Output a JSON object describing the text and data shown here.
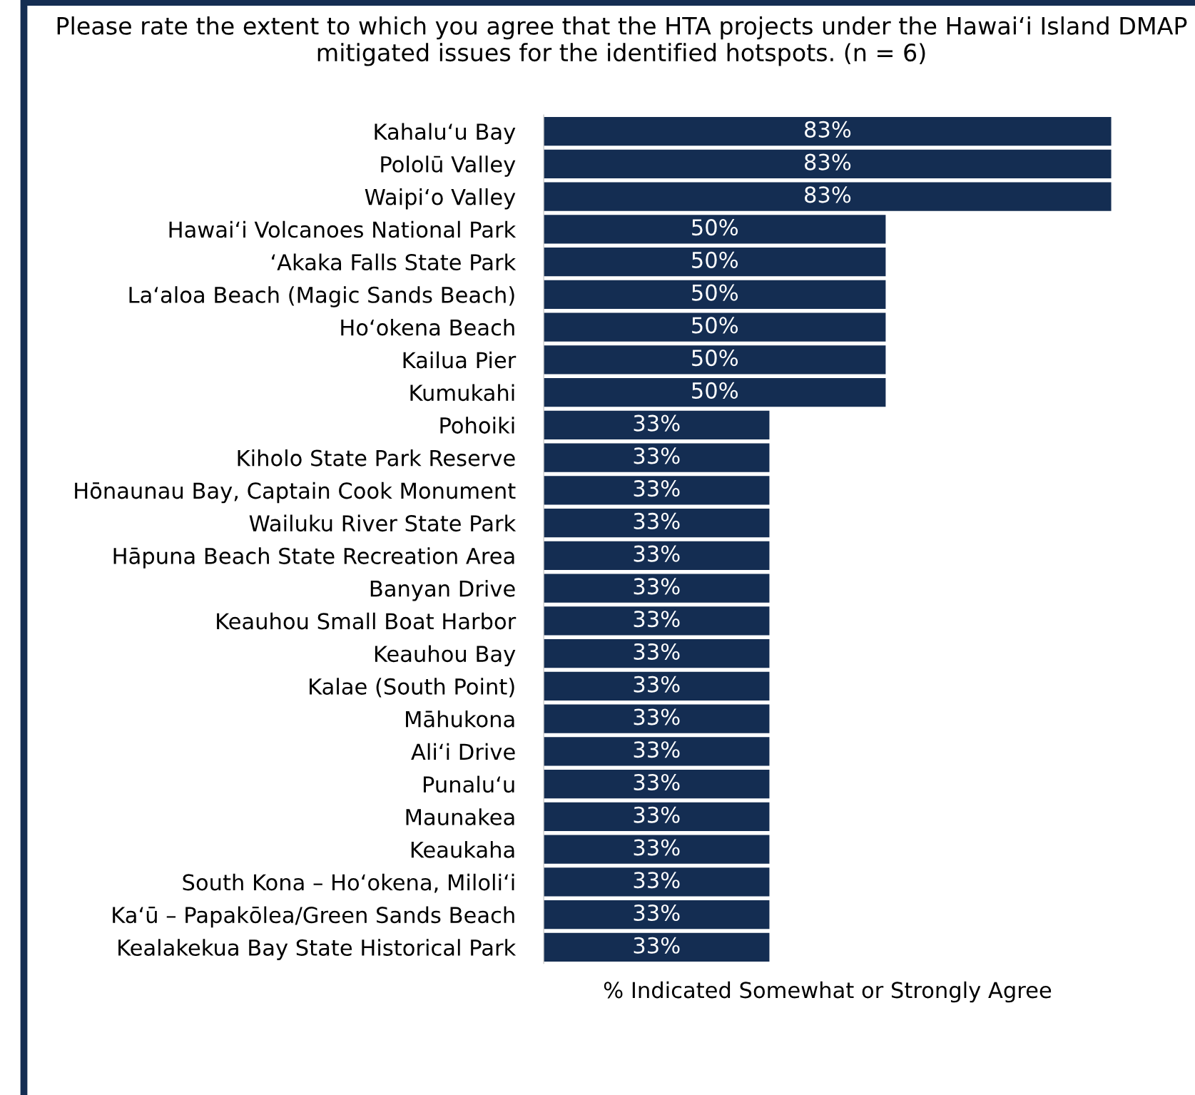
{
  "chart_data": {
    "type": "bar",
    "orientation": "horizontal",
    "title": "Please rate the extent to which you agree that the HTA projects under the Hawai‘i Island DMAP mitigated issues for the identified hotspots. (n = 6)",
    "xlabel": "% Indicated Somewhat or Strongly Agree",
    "categories": [
      "Kahalu‘u Bay",
      "Pololū Valley",
      "Waipi‘o Valley",
      "Hawai‘i Volcanoes National Park",
      "‘Akaka Falls State Park",
      "La‘aloa Beach (Magic Sands Beach)",
      "Ho‘okena Beach",
      "Kailua Pier",
      "Kumukahi",
      "Pohoiki",
      "Kiholo State Park Reserve",
      "Hōnaunau Bay, Captain Cook Monument",
      "Wailuku River State Park",
      "Hāpuna Beach State Recreation Area",
      "Banyan Drive",
      "Keauhou Small Boat Harbor",
      "Keauhou Bay",
      "Kalae (South Point)",
      "Māhukona",
      "Ali‘i Drive",
      "Punalu‘u",
      "Maunakea",
      "Keaukaha",
      "South Kona – Ho‘okena, Miloli‘i",
      "Ka‘ū – Papakōlea/Green Sands Beach",
      "Kealakekua Bay State Historical Park"
    ],
    "values": [
      83,
      83,
      83,
      50,
      50,
      50,
      50,
      50,
      50,
      33,
      33,
      33,
      33,
      33,
      33,
      33,
      33,
      33,
      33,
      33,
      33,
      33,
      33,
      33,
      33,
      33
    ],
    "value_labels": [
      "83%",
      "83%",
      "83%",
      "50%",
      "50%",
      "50%",
      "50%",
      "50%",
      "50%",
      "33%",
      "33%",
      "33%",
      "33%",
      "33%",
      "33%",
      "33%",
      "33%",
      "33%",
      "33%",
      "33%",
      "33%",
      "33%",
      "33%",
      "33%",
      "33%",
      "33%"
    ],
    "color": "#142d52",
    "grid": false,
    "legend": false
  }
}
